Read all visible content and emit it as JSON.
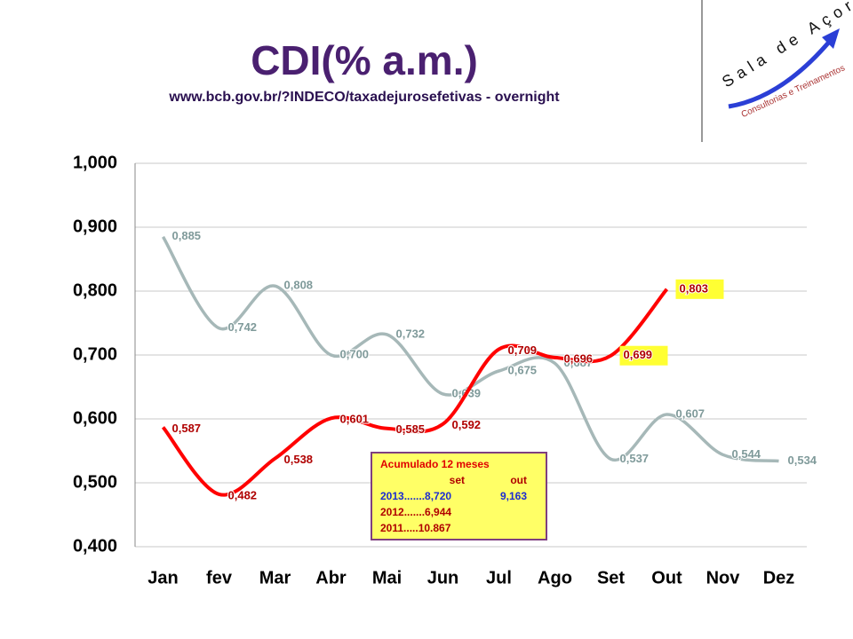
{
  "chart_data": {
    "type": "line",
    "title": "CDI(% a.m.)",
    "subtitle": "www.bcb.gov.br/?INDECO/taxadejurosefetivas - overnight",
    "categories": [
      "Jan",
      "fev",
      "Mar",
      "Abr",
      "Mai",
      "Jun",
      "Jul",
      "Ago",
      "Set",
      "Out",
      "Nov",
      "Dez"
    ],
    "series": [
      {
        "color": "#a6b8b8",
        "smooth": true,
        "values": [
          0.885,
          0.742,
          0.808,
          0.7,
          0.732,
          0.639,
          0.675,
          0.687,
          0.537,
          0.607,
          0.544,
          0.534
        ],
        "value_labels": [
          "0,885",
          "0,742",
          "0,808",
          "0,700",
          "0,732",
          "0,639",
          "0,675",
          "0,687",
          "0,537",
          "0,607",
          "0,544",
          "0,534"
        ]
      },
      {
        "color": "#ff0000",
        "smooth": true,
        "values": [
          0.587,
          0.482,
          0.538,
          0.601,
          0.585,
          0.592,
          0.709,
          0.696,
          0.699,
          0.803,
          null,
          null
        ],
        "value_labels": [
          "0,587",
          "0,482",
          "0,538",
          "0,601",
          "0,585",
          "0,592",
          "0,709",
          "0,696",
          "0,699",
          "0,803",
          null,
          null
        ]
      }
    ],
    "ylim": [
      0.4,
      1.0
    ],
    "yticks": [
      {
        "value": 0.4,
        "label": "0,400"
      },
      {
        "value": 0.5,
        "label": "0,500"
      },
      {
        "value": 0.6,
        "label": "0,600"
      },
      {
        "value": 0.7,
        "label": "0,700"
      },
      {
        "value": 0.8,
        "label": "0,800"
      },
      {
        "value": 0.9,
        "label": "0,900"
      },
      {
        "value": 1.0,
        "label": "1,000"
      }
    ],
    "grid": true,
    "annotation": {
      "title": "Acumulado  12 meses",
      "columns": [
        "set",
        "out"
      ],
      "rows": [
        [
          "2013.......8,720",
          "9,163"
        ],
        [
          "2012.......6,944"
        ],
        [
          "2011.....10.867"
        ]
      ]
    }
  },
  "logo": {
    "name": "Sala de Açores",
    "tagline": "Consultorias e Treinamentos"
  }
}
